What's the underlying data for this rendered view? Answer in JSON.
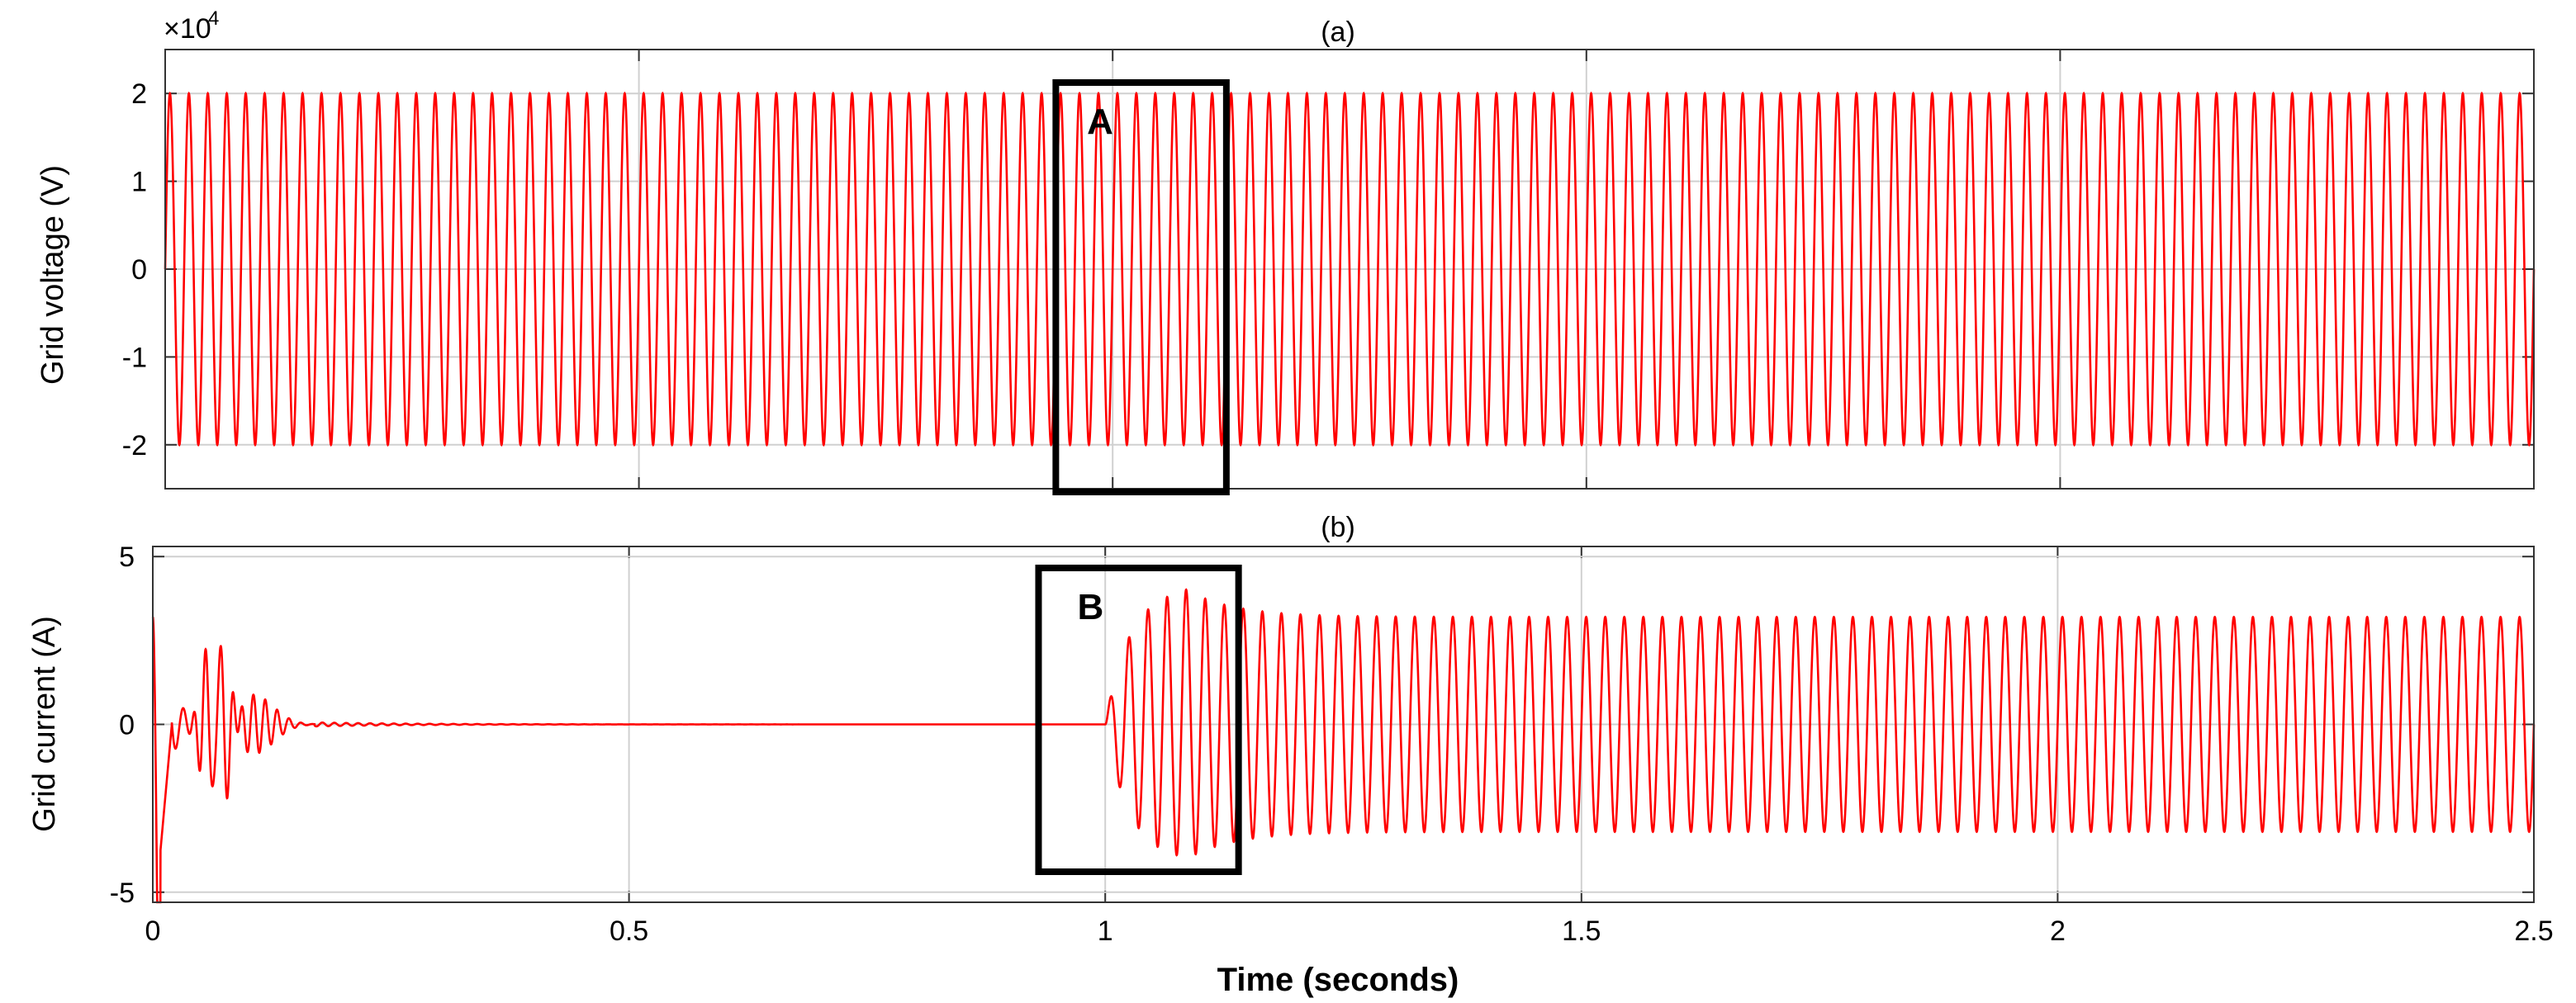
{
  "chart_data": [
    {
      "type": "line",
      "panel_label": "(a)",
      "ylabel": "Grid voltage (V)",
      "y_multiplier": "×10",
      "y_multiplier_exp": "4",
      "xlim": [
        0,
        2.5
      ],
      "ylim": [
        -25000,
        25000
      ],
      "y_ticks": [
        -20000,
        -10000,
        0,
        10000,
        20000
      ],
      "y_tick_labels": [
        "-2",
        "-1",
        "0",
        "1",
        "2"
      ],
      "grid": true,
      "line_color": "#ff0000",
      "series": [
        {
          "frequency_hz": 50,
          "amplitude": 20000,
          "t_start": 0,
          "t_end": 2.5
        }
      ],
      "annotation": {
        "label": "A",
        "x_range": [
          0.94,
          1.12
        ]
      }
    },
    {
      "type": "line",
      "panel_label": "(b)",
      "ylabel": "Grid current (A)",
      "xlabel": "Time (seconds)",
      "xlim": [
        0,
        2.5
      ],
      "ylim": [
        -5.3,
        5.3
      ],
      "y_ticks": [
        -5,
        0,
        5
      ],
      "y_tick_labels": [
        "-5",
        "0",
        "5"
      ],
      "x_ticks": [
        0,
        0.5,
        1,
        1.5,
        2,
        2.5
      ],
      "x_tick_labels": [
        "0",
        "0.5",
        "1",
        "1.5",
        "2",
        "2.5"
      ],
      "grid": true,
      "line_color": "#ff0000",
      "series": [
        {
          "frequency_hz": 50,
          "startup_peaks": [
            3.2,
            -4.2,
            1.9,
            -3.0,
            1.3
          ],
          "idle_level": 0,
          "step_time": 1.0,
          "transient_peak": 4.1,
          "steady_state_amplitude": 3.2
        }
      ],
      "annotation": {
        "label": "B",
        "x_range": [
          0.93,
          1.14
        ]
      }
    }
  ]
}
